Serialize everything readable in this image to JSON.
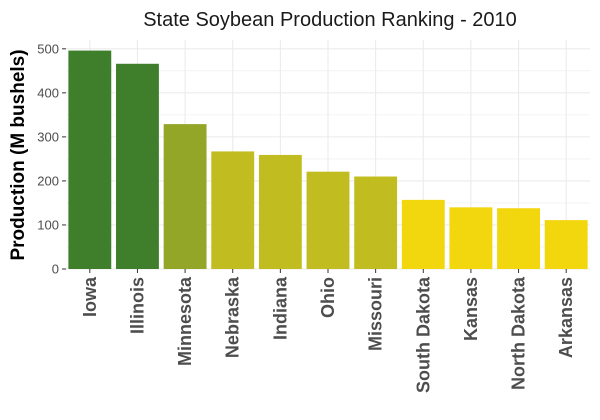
{
  "chart_data": {
    "type": "bar",
    "title": "State Soybean Production Ranking - 2010",
    "xlabel": "",
    "ylabel": "Production (M bushels)",
    "ylim": [
      0,
      520
    ],
    "yticks": [
      0,
      100,
      200,
      300,
      400,
      500
    ],
    "grid": true,
    "legend": "none",
    "categories": [
      "Iowa",
      "Illinois",
      "Minnesota",
      "Nebraska",
      "Indiana",
      "Ohio",
      "Missouri",
      "South Dakota",
      "Kansas",
      "North Dakota",
      "Arkansas"
    ],
    "values": [
      496,
      466,
      329,
      267,
      259,
      221,
      210,
      157,
      140,
      138,
      111
    ],
    "colors": [
      "#3f7f2c",
      "#3f7f2c",
      "#93a627",
      "#c1bd21",
      "#c1bd21",
      "#c1bd21",
      "#c1bd21",
      "#f2d60e",
      "#f2d60e",
      "#f2d60e",
      "#f2d60e"
    ],
    "panel_background": "#ffffff",
    "grid_color": "#ebebeb"
  }
}
